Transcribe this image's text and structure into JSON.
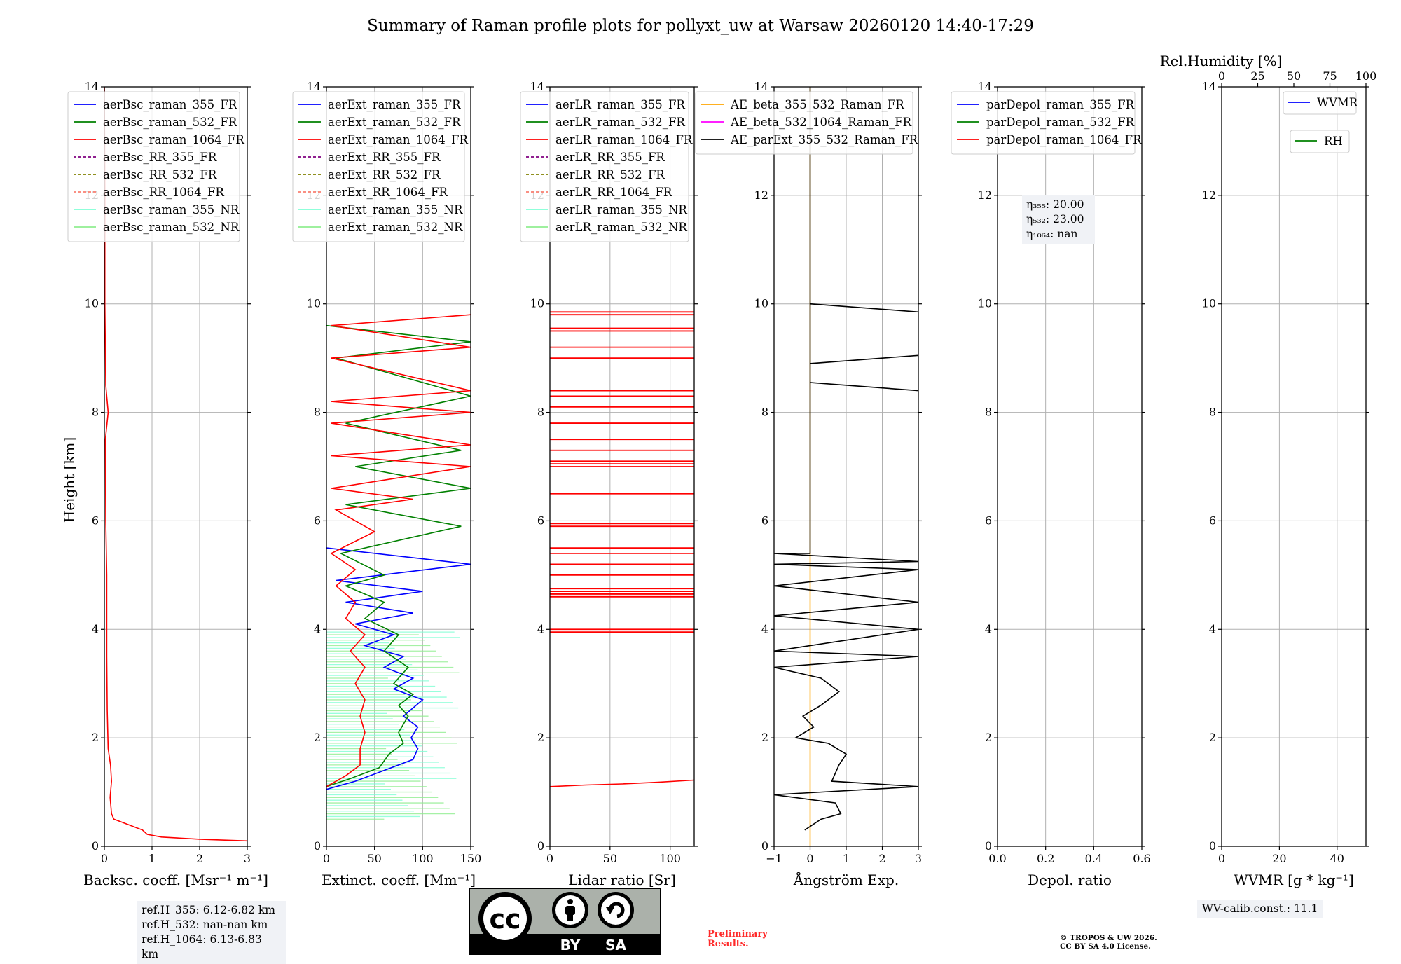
{
  "title": "Summary of Raman profile plots for pollyxt_uw at Warsaw 20260120 14:40-17:29",
  "ylabel": "Height [km]",
  "rh_axis_title": "Rel.Humidity [%]",
  "rh_ticks": [
    "0",
    "25",
    "50",
    "75",
    "100"
  ],
  "colors": {
    "blue": "#0000ff",
    "green": "#008000",
    "red": "#ff0000",
    "purple": "#800080",
    "olive": "#808000",
    "salmon": "#fa8072",
    "cyan": "#7fffd4",
    "lightgreen": "#90ee90",
    "orange": "#ffa500",
    "magenta": "#ff00ff",
    "black": "#000000"
  },
  "chart_data": [
    {
      "type": "line",
      "name": "backscatter",
      "xlabel": "Backsc. coeff. [Msr⁻¹ m⁻¹]",
      "xlim": [
        0,
        3
      ],
      "ylim": [
        0,
        14
      ],
      "xticks": [
        "0",
        "1",
        "2",
        "3"
      ],
      "yticks": [
        "0",
        "2",
        "4",
        "6",
        "8",
        "10",
        "12",
        "14"
      ],
      "legend": [
        {
          "label": "aerBsc_raman_355_FR",
          "color": "blue",
          "dash": false
        },
        {
          "label": "aerBsc_raman_532_FR",
          "color": "green",
          "dash": false
        },
        {
          "label": "aerBsc_raman_1064_FR",
          "color": "red",
          "dash": false
        },
        {
          "label": "aerBsc_RR_355_FR",
          "color": "purple",
          "dash": true
        },
        {
          "label": "aerBsc_RR_532_FR",
          "color": "olive",
          "dash": true
        },
        {
          "label": "aerBsc_RR_1064_FR",
          "color": "salmon",
          "dash": true
        },
        {
          "label": "aerBsc_raman_355_NR",
          "color": "cyan",
          "dash": false
        },
        {
          "label": "aerBsc_raman_532_NR",
          "color": "lightgreen",
          "dash": false
        }
      ],
      "series": [
        {
          "name": "aerBsc_raman_1064_FR",
          "color": "red",
          "points": [
            [
              3.0,
              0.1
            ],
            [
              2.0,
              0.13
            ],
            [
              1.2,
              0.17
            ],
            [
              0.9,
              0.22
            ],
            [
              0.8,
              0.3
            ],
            [
              0.5,
              0.4
            ],
            [
              0.2,
              0.5
            ],
            [
              0.15,
              0.6
            ],
            [
              0.12,
              0.9
            ],
            [
              0.15,
              1.2
            ],
            [
              0.13,
              1.5
            ],
            [
              0.08,
              1.8
            ],
            [
              0.06,
              2.5
            ],
            [
              0.05,
              3.5
            ],
            [
              0.05,
              5.0
            ],
            [
              0.03,
              6.0
            ],
            [
              0.02,
              7.5
            ],
            [
              0.08,
              8.0
            ],
            [
              0.03,
              8.5
            ],
            [
              0.01,
              10.0
            ],
            [
              0.01,
              12.0
            ],
            [
              0.0,
              14.0
            ]
          ]
        }
      ]
    },
    {
      "type": "line",
      "name": "extinction",
      "xlabel": "Extinct. coeff. [Mm⁻¹]",
      "xlim": [
        0,
        150
      ],
      "ylim": [
        0,
        14
      ],
      "xticks": [
        "0",
        "50",
        "100",
        "150"
      ],
      "yticks": [
        "0",
        "2",
        "4",
        "6",
        "8",
        "10",
        "12",
        "14"
      ],
      "legend": [
        {
          "label": "aerExt_raman_355_FR",
          "color": "blue",
          "dash": false
        },
        {
          "label": "aerExt_raman_532_FR",
          "color": "green",
          "dash": false
        },
        {
          "label": "aerExt_raman_1064_FR",
          "color": "red",
          "dash": false
        },
        {
          "label": "aerExt_RR_355_FR",
          "color": "purple",
          "dash": true
        },
        {
          "label": "aerExt_RR_532_FR",
          "color": "olive",
          "dash": true
        },
        {
          "label": "aerExt_RR_1064_FR",
          "color": "salmon",
          "dash": true
        },
        {
          "label": "aerExt_raman_355_NR",
          "color": "cyan",
          "dash": false
        },
        {
          "label": "aerExt_raman_532_NR",
          "color": "lightgreen",
          "dash": false
        }
      ],
      "series": [
        {
          "name": "aerExt_raman_355_FR",
          "color": "blue",
          "points": [
            [
              0,
              1.05
            ],
            [
              30,
              1.2
            ],
            [
              60,
              1.4
            ],
            [
              90,
              1.6
            ],
            [
              95,
              1.8
            ],
            [
              88,
              2.0
            ],
            [
              95,
              2.2
            ],
            [
              80,
              2.4
            ],
            [
              100,
              2.7
            ],
            [
              70,
              2.9
            ],
            [
              90,
              3.1
            ],
            [
              60,
              3.3
            ],
            [
              80,
              3.5
            ],
            [
              40,
              3.7
            ],
            [
              70,
              3.9
            ],
            [
              30,
              4.1
            ],
            [
              90,
              4.3
            ],
            [
              20,
              4.5
            ],
            [
              100,
              4.7
            ],
            [
              10,
              4.9
            ],
            [
              150,
              5.2
            ],
            [
              0,
              5.5
            ]
          ]
        },
        {
          "name": "aerExt_raman_532_FR",
          "color": "green",
          "points": [
            [
              0,
              1.1
            ],
            [
              25,
              1.25
            ],
            [
              55,
              1.45
            ],
            [
              65,
              1.7
            ],
            [
              80,
              1.9
            ],
            [
              75,
              2.1
            ],
            [
              85,
              2.4
            ],
            [
              75,
              2.6
            ],
            [
              90,
              2.8
            ],
            [
              70,
              3.0
            ],
            [
              85,
              3.3
            ],
            [
              60,
              3.6
            ],
            [
              75,
              3.9
            ],
            [
              40,
              4.2
            ],
            [
              60,
              4.5
            ],
            [
              20,
              4.8
            ],
            [
              60,
              5.0
            ],
            [
              15,
              5.4
            ],
            [
              140,
              5.9
            ],
            [
              20,
              6.3
            ],
            [
              150,
              6.6
            ],
            [
              30,
              7.0
            ],
            [
              140,
              7.3
            ],
            [
              20,
              7.8
            ],
            [
              150,
              8.3
            ],
            [
              10,
              9.0
            ],
            [
              150,
              9.3
            ],
            [
              0,
              9.6
            ]
          ]
        },
        {
          "name": "aerExt_raman_1064_FR",
          "color": "red",
          "points": [
            [
              0,
              1.1
            ],
            [
              20,
              1.3
            ],
            [
              35,
              1.5
            ],
            [
              35,
              1.8
            ],
            [
              40,
              2.1
            ],
            [
              35,
              2.4
            ],
            [
              40,
              2.7
            ],
            [
              30,
              3.0
            ],
            [
              40,
              3.3
            ],
            [
              25,
              3.6
            ],
            [
              40,
              3.9
            ],
            [
              20,
              4.2
            ],
            [
              30,
              4.5
            ],
            [
              10,
              4.8
            ],
            [
              30,
              5.1
            ],
            [
              5,
              5.4
            ],
            [
              50,
              5.8
            ],
            [
              10,
              6.2
            ],
            [
              90,
              6.4
            ],
            [
              5,
              6.6
            ],
            [
              150,
              7.0
            ],
            [
              5,
              7.2
            ],
            [
              150,
              7.4
            ],
            [
              5,
              7.8
            ],
            [
              150,
              8.0
            ],
            [
              5,
              8.2
            ],
            [
              150,
              8.4
            ],
            [
              5,
              9.0
            ],
            [
              150,
              9.2
            ],
            [
              5,
              9.6
            ],
            [
              150,
              9.8
            ]
          ]
        }
      ]
    },
    {
      "type": "line",
      "name": "lidar_ratio",
      "xlabel": "Lidar ratio [Sr]",
      "xlim": [
        0,
        120
      ],
      "ylim": [
        0,
        14
      ],
      "xticks": [
        "0",
        "50",
        "100"
      ],
      "yticks": [
        "0",
        "2",
        "4",
        "6",
        "8",
        "10",
        "12",
        "14"
      ],
      "legend": [
        {
          "label": "aerLR_raman_355_FR",
          "color": "blue",
          "dash": false
        },
        {
          "label": "aerLR_raman_532_FR",
          "color": "green",
          "dash": false
        },
        {
          "label": "aerLR_raman_1064_FR",
          "color": "red",
          "dash": false
        },
        {
          "label": "aerLR_RR_355_FR",
          "color": "purple",
          "dash": true
        },
        {
          "label": "aerLR_RR_532_FR",
          "color": "olive",
          "dash": true
        },
        {
          "label": "aerLR_RR_1064_FR",
          "color": "salmon",
          "dash": true
        },
        {
          "label": "aerLR_raman_355_NR",
          "color": "cyan",
          "dash": false
        },
        {
          "label": "aerLR_raman_532_NR",
          "color": "lightgreen",
          "dash": false
        }
      ],
      "series": [
        {
          "name": "aerLR_raman_1064_FR",
          "color": "red",
          "points": [
            [
              0,
              1.1
            ],
            [
              30,
              1.13
            ],
            [
              60,
              1.15
            ],
            [
              90,
              1.18
            ],
            [
              120,
              1.22
            ]
          ]
        }
      ],
      "red_spikes_km": [
        3.95,
        4.0,
        4.6,
        4.65,
        4.7,
        4.75,
        5.0,
        5.2,
        5.4,
        5.5,
        5.9,
        5.95,
        6.5,
        7.0,
        7.05,
        7.1,
        7.3,
        7.5,
        7.8,
        8.1,
        8.3,
        8.4,
        9.0,
        9.2,
        9.5,
        9.55,
        9.8,
        9.85
      ]
    },
    {
      "type": "line",
      "name": "angstrom",
      "xlabel": "Ångström Exp.",
      "xlim": [
        -1,
        3
      ],
      "ylim": [
        0,
        14
      ],
      "xticks": [
        "−1",
        "0",
        "1",
        "2",
        "3"
      ],
      "yticks": [
        "0",
        "2",
        "4",
        "6",
        "8",
        "10",
        "12",
        "14"
      ],
      "legend": [
        {
          "label": "AE_beta_355_532_Raman_FR",
          "color": "orange",
          "dash": false
        },
        {
          "label": "AE_beta_532_1064_Raman_FR",
          "color": "magenta",
          "dash": false
        },
        {
          "label": "AE_parExt_355_532_Raman_FR",
          "color": "black",
          "dash": false
        }
      ],
      "series": [
        {
          "name": "AE_beta_355_532_Raman_FR",
          "color": "orange",
          "points": [
            [
              0,
              0
            ],
            [
              0,
              14
            ]
          ]
        },
        {
          "name": "AE_parExt_355_532_Raman_FR",
          "color": "black",
          "points": [
            [
              -0.15,
              0.3
            ],
            [
              0.3,
              0.5
            ],
            [
              0.85,
              0.6
            ],
            [
              0.7,
              0.8
            ],
            [
              -1,
              0.95
            ],
            [
              3,
              1.1
            ],
            [
              0.6,
              1.2
            ],
            [
              0.8,
              1.5
            ],
            [
              1.0,
              1.7
            ],
            [
              0.5,
              1.9
            ],
            [
              -0.4,
              2.0
            ],
            [
              0.1,
              2.2
            ],
            [
              -0.2,
              2.4
            ],
            [
              0.3,
              2.6
            ],
            [
              0.8,
              2.85
            ],
            [
              0.3,
              3.1
            ],
            [
              -1,
              3.3
            ],
            [
              3,
              3.5
            ],
            [
              -1,
              3.6
            ],
            [
              3,
              4.0
            ],
            [
              -1,
              4.25
            ],
            [
              3,
              4.5
            ],
            [
              -1,
              4.8
            ],
            [
              3,
              5.1
            ],
            [
              -1,
              5.2
            ],
            [
              3,
              5.25
            ],
            [
              -1,
              5.4
            ],
            [
              0,
              5.4
            ],
            [
              0,
              8.55
            ],
            [
              3,
              8.4
            ],
            [
              0,
              8.55
            ],
            [
              0,
              8.9
            ],
            [
              3,
              9.05
            ],
            [
              0,
              8.9
            ],
            [
              0,
              10.0
            ],
            [
              3,
              9.85
            ],
            [
              0,
              10.0
            ],
            [
              0,
              14.0
            ]
          ]
        }
      ]
    },
    {
      "type": "line",
      "name": "depol",
      "xlabel": "Depol. ratio",
      "xlim": [
        0,
        0.6
      ],
      "ylim": [
        0,
        14
      ],
      "xticks": [
        "0.0",
        "0.2",
        "0.4",
        "0.6"
      ],
      "yticks": [
        "0",
        "2",
        "4",
        "6",
        "8",
        "10",
        "12",
        "14"
      ],
      "legend": [
        {
          "label": "parDepol_raman_355_FR",
          "color": "blue",
          "dash": false
        },
        {
          "label": "parDepol_raman_532_FR",
          "color": "green",
          "dash": false
        },
        {
          "label": "parDepol_raman_1064_FR",
          "color": "red",
          "dash": false
        }
      ],
      "series": []
    },
    {
      "type": "line",
      "name": "wvmr",
      "xlabel": "WVMR [g * kg⁻¹]",
      "xlim": [
        0,
        50
      ],
      "ylim": [
        0,
        14
      ],
      "xticks": [
        "0",
        "20",
        "40"
      ],
      "yticks": [
        "0",
        "2",
        "4",
        "6",
        "8",
        "10",
        "12",
        "14"
      ],
      "legend": [
        {
          "label": "WVMR",
          "color": "blue",
          "dash": false
        },
        {
          "label": "RH",
          "color": "green",
          "dash": false
        }
      ],
      "series": []
    }
  ],
  "eta_box": {
    "l1": "η₃₅₅: 20.00",
    "l2": "η₅₃₂: 23.00",
    "l3": "η₁₀₆₄: nan"
  },
  "ref_box": {
    "l1": "ref.H_355: 6.12-6.82 km",
    "l2": "ref.H_532: nan-nan km",
    "l3": "ref.H_1064: 6.13-6.83 km"
  },
  "wv_calib": "WV-calib.const.: 11.1",
  "preliminary": {
    "l1": "Preliminary",
    "l2": "Results."
  },
  "copyright": {
    "l1": "© TROPOS & UW 2026.",
    "l2": "CC BY SA 4.0 License."
  },
  "cc_logo": {
    "cc": "cc",
    "by": "BY",
    "sa": "SA"
  }
}
